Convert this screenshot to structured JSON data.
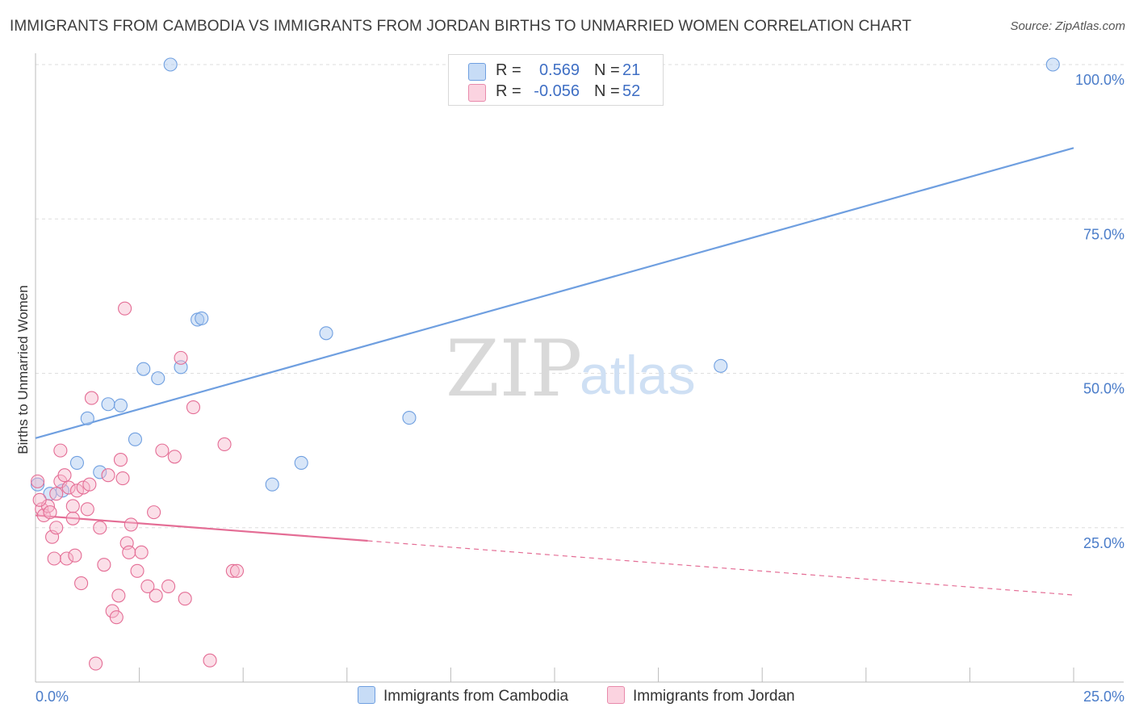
{
  "title": "IMMIGRANTS FROM CAMBODIA VS IMMIGRANTS FROM JORDAN BIRTHS TO UNMARRIED WOMEN CORRELATION CHART",
  "source": "Source: ZipAtlas.com",
  "watermark": {
    "zip": "ZIP",
    "atlas": "atlas"
  },
  "stats": [
    {
      "r_label": "R =",
      "r_value": "0.569",
      "n_label": "N =",
      "n_value": "21",
      "color": "#a9c8f0"
    },
    {
      "r_label": "R =",
      "r_value": "-0.056",
      "n_label": "N =",
      "n_value": "52",
      "color": "#f6b9cc"
    }
  ],
  "legend": [
    {
      "label": "Immigrants from Cambodia",
      "color": "#a9c8f0"
    },
    {
      "label": "Immigrants from Jordan",
      "color": "#f6b9cc"
    }
  ],
  "chart_data": {
    "type": "scatter",
    "title": "IMMIGRANTS FROM CAMBODIA VS IMMIGRANTS FROM JORDAN BIRTHS TO UNMARRIED WOMEN CORRELATION CHART",
    "xlabel": "",
    "ylabel": "Births to Unmarried Women",
    "xlim": [
      0,
      25
    ],
    "ylim": [
      0,
      100
    ],
    "x_tick_labels": [
      "0.0%",
      "25.0%"
    ],
    "y_ticks": [
      25,
      50,
      75,
      100
    ],
    "y_tick_labels": [
      "25.0%",
      "50.0%",
      "75.0%",
      "100.0%"
    ],
    "grid": true,
    "series": [
      {
        "name": "Immigrants from Cambodia",
        "color": "#6f9fe0",
        "fill": "#a9c8f0",
        "trend": {
          "x": [
            0,
            25
          ],
          "y": [
            39.5,
            86.5
          ],
          "dash_from_x": null
        },
        "points": [
          [
            0.05,
            32.0
          ],
          [
            0.35,
            30.5
          ],
          [
            0.65,
            31.0
          ],
          [
            1.0,
            35.5
          ],
          [
            1.25,
            42.7
          ],
          [
            1.55,
            34.0
          ],
          [
            1.75,
            45.0
          ],
          [
            2.05,
            44.8
          ],
          [
            2.4,
            39.3
          ],
          [
            2.6,
            50.7
          ],
          [
            2.95,
            49.2
          ],
          [
            3.25,
            100.0
          ],
          [
            3.5,
            51.0
          ],
          [
            3.9,
            58.7
          ],
          [
            4.0,
            58.9
          ],
          [
            5.7,
            32.0
          ],
          [
            6.4,
            35.5
          ],
          [
            7.0,
            56.5
          ],
          [
            9.0,
            42.8
          ],
          [
            16.5,
            51.2
          ],
          [
            24.5,
            100.0
          ]
        ]
      },
      {
        "name": "Immigrants from Jordan",
        "color": "#e46d95",
        "fill": "#f6b9cc",
        "trend": {
          "x": [
            0,
            25
          ],
          "y": [
            27.0,
            14.1
          ],
          "dash_from_x": 8.0
        },
        "points": [
          [
            0.05,
            32.5
          ],
          [
            0.15,
            28.0
          ],
          [
            0.2,
            27.0
          ],
          [
            0.3,
            28.5
          ],
          [
            0.35,
            27.5
          ],
          [
            0.4,
            23.5
          ],
          [
            0.5,
            25.0
          ],
          [
            0.5,
            30.5
          ],
          [
            0.6,
            32.5
          ],
          [
            0.6,
            37.5
          ],
          [
            0.7,
            33.5
          ],
          [
            0.75,
            20.0
          ],
          [
            0.8,
            31.5
          ],
          [
            0.9,
            26.5
          ],
          [
            0.95,
            20.5
          ],
          [
            1.0,
            31.0
          ],
          [
            1.1,
            16.0
          ],
          [
            1.15,
            31.5
          ],
          [
            1.25,
            28.0
          ],
          [
            1.35,
            46.0
          ],
          [
            1.45,
            3.0
          ],
          [
            1.55,
            25.0
          ],
          [
            1.65,
            19.0
          ],
          [
            1.75,
            33.5
          ],
          [
            1.85,
            11.5
          ],
          [
            1.95,
            10.5
          ],
          [
            2.0,
            14.0
          ],
          [
            2.05,
            36.0
          ],
          [
            2.1,
            33.0
          ],
          [
            2.15,
            60.5
          ],
          [
            2.2,
            22.5
          ],
          [
            2.25,
            21.0
          ],
          [
            2.3,
            25.5
          ],
          [
            2.45,
            18.0
          ],
          [
            2.55,
            21.0
          ],
          [
            2.7,
            15.5
          ],
          [
            2.85,
            27.5
          ],
          [
            2.9,
            14.0
          ],
          [
            3.05,
            37.5
          ],
          [
            3.2,
            15.5
          ],
          [
            3.35,
            36.5
          ],
          [
            3.5,
            52.5
          ],
          [
            3.6,
            13.5
          ],
          [
            3.8,
            44.5
          ],
          [
            4.2,
            3.5
          ],
          [
            4.55,
            38.5
          ],
          [
            4.75,
            18.0
          ],
          [
            4.85,
            18.0
          ],
          [
            0.1,
            29.5
          ],
          [
            0.9,
            28.5
          ],
          [
            1.3,
            32.0
          ],
          [
            0.45,
            20.0
          ]
        ]
      }
    ]
  }
}
